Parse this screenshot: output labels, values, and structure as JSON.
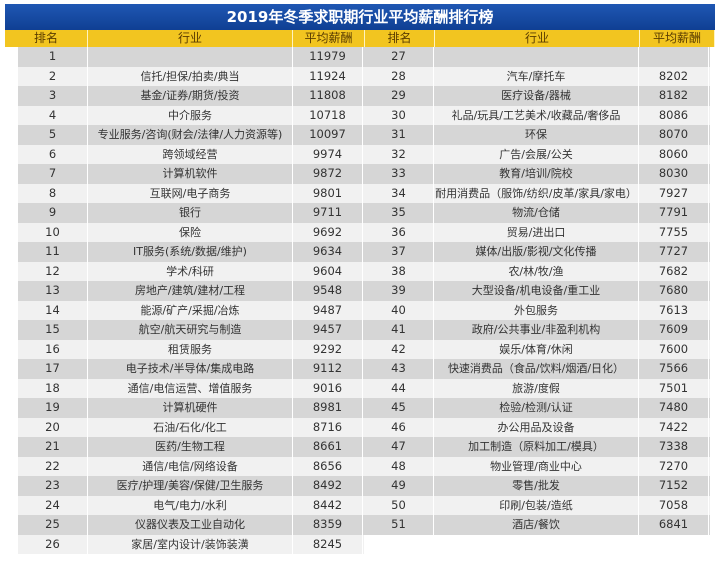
{
  "title": "2019年冬季求职期行业平均薪酬排行榜",
  "headers": {
    "rank": "排名",
    "industry": "行业",
    "salary": "平均薪酬"
  },
  "colors": {
    "title_bg": "#1a4fa8",
    "header_bg": "#f2c520",
    "row_gray": "#d6d6d6",
    "row_light": "#f1f1f1"
  },
  "left": [
    {
      "rank": "1",
      "industry": "",
      "salary": "11979"
    },
    {
      "rank": "2",
      "industry": "信托/担保/拍卖/典当",
      "salary": "11924"
    },
    {
      "rank": "3",
      "industry": "基金/证券/期货/投资",
      "salary": "11808"
    },
    {
      "rank": "4",
      "industry": "中介服务",
      "salary": "10718"
    },
    {
      "rank": "5",
      "industry": "专业服务/咨询(财会/法律/人力资源等)",
      "salary": "10097"
    },
    {
      "rank": "6",
      "industry": "跨领域经营",
      "salary": "9974"
    },
    {
      "rank": "7",
      "industry": "计算机软件",
      "salary": "9872"
    },
    {
      "rank": "8",
      "industry": "互联网/电子商务",
      "salary": "9801"
    },
    {
      "rank": "9",
      "industry": "银行",
      "salary": "9711"
    },
    {
      "rank": "10",
      "industry": "保险",
      "salary": "9692"
    },
    {
      "rank": "11",
      "industry": "IT服务(系统/数据/维护)",
      "salary": "9634"
    },
    {
      "rank": "12",
      "industry": "学术/科研",
      "salary": "9604"
    },
    {
      "rank": "13",
      "industry": "房地产/建筑/建材/工程",
      "salary": "9548"
    },
    {
      "rank": "14",
      "industry": "能源/矿产/采掘/冶炼",
      "salary": "9487"
    },
    {
      "rank": "15",
      "industry": "航空/航天研究与制造",
      "salary": "9457"
    },
    {
      "rank": "16",
      "industry": "租赁服务",
      "salary": "9292"
    },
    {
      "rank": "17",
      "industry": "电子技术/半导体/集成电路",
      "salary": "9112"
    },
    {
      "rank": "18",
      "industry": "通信/电信运营、增值服务",
      "salary": "9016"
    },
    {
      "rank": "19",
      "industry": "计算机硬件",
      "salary": "8981"
    },
    {
      "rank": "20",
      "industry": "石油/石化/化工",
      "salary": "8716"
    },
    {
      "rank": "21",
      "industry": "医药/生物工程",
      "salary": "8661"
    },
    {
      "rank": "22",
      "industry": "通信/电信/网络设备",
      "salary": "8656"
    },
    {
      "rank": "23",
      "industry": "医疗/护理/美容/保健/卫生服务",
      "salary": "8492"
    },
    {
      "rank": "24",
      "industry": "电气/电力/水利",
      "salary": "8442"
    },
    {
      "rank": "25",
      "industry": "仪器仪表及工业自动化",
      "salary": "8359"
    },
    {
      "rank": "26",
      "industry": "家居/室内设计/装饰装潢",
      "salary": "8245"
    }
  ],
  "right": [
    {
      "rank": "27",
      "industry": "",
      "salary": ""
    },
    {
      "rank": "28",
      "industry": "汽车/摩托车",
      "salary": "8202"
    },
    {
      "rank": "29",
      "industry": "医疗设备/器械",
      "salary": "8182"
    },
    {
      "rank": "30",
      "industry": "礼品/玩具/工艺美术/收藏品/奢侈品",
      "salary": "8086"
    },
    {
      "rank": "31",
      "industry": "环保",
      "salary": "8070"
    },
    {
      "rank": "32",
      "industry": "广告/会展/公关",
      "salary": "8060"
    },
    {
      "rank": "33",
      "industry": "教育/培训/院校",
      "salary": "8030"
    },
    {
      "rank": "34",
      "industry": "耐用消费品（服饰/纺织/皮革/家具/家电）",
      "salary": "7927"
    },
    {
      "rank": "35",
      "industry": "物流/仓储",
      "salary": "7791"
    },
    {
      "rank": "36",
      "industry": "贸易/进出口",
      "salary": "7755"
    },
    {
      "rank": "37",
      "industry": "媒体/出版/影视/文化传播",
      "salary": "7727"
    },
    {
      "rank": "38",
      "industry": "农/林/牧/渔",
      "salary": "7682"
    },
    {
      "rank": "39",
      "industry": "大型设备/机电设备/重工业",
      "salary": "7680"
    },
    {
      "rank": "40",
      "industry": "外包服务",
      "salary": "7613"
    },
    {
      "rank": "41",
      "industry": "政府/公共事业/非盈利机构",
      "salary": "7609"
    },
    {
      "rank": "42",
      "industry": "娱乐/体育/休闲",
      "salary": "7600"
    },
    {
      "rank": "43",
      "industry": "快速消费品（食品/饮料/烟酒/日化）",
      "salary": "7566"
    },
    {
      "rank": "44",
      "industry": "旅游/度假",
      "salary": "7501"
    },
    {
      "rank": "45",
      "industry": "检验/检测/认证",
      "salary": "7480"
    },
    {
      "rank": "46",
      "industry": "办公用品及设备",
      "salary": "7422"
    },
    {
      "rank": "47",
      "industry": "加工制造（原料加工/模具）",
      "salary": "7338"
    },
    {
      "rank": "48",
      "industry": "物业管理/商业中心",
      "salary": "7270"
    },
    {
      "rank": "49",
      "industry": "零售/批发",
      "salary": "7152"
    },
    {
      "rank": "50",
      "industry": "印刷/包装/造纸",
      "salary": "7058"
    },
    {
      "rank": "51",
      "industry": "酒店/餐饮",
      "salary": "6841"
    }
  ]
}
